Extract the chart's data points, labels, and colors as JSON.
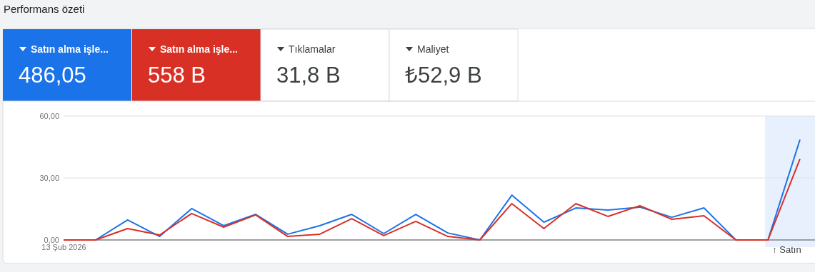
{
  "chart_data": [
    {
      "type": "other",
      "title": "Performans özeti",
      "categories": [
        "Satın alma işle...",
        "Satın alma işle...",
        "Tıklamalar",
        "Maliyet"
      ],
      "value_labels": [
        "486,05",
        "558 B",
        "31,8 B",
        "₺52,9 B"
      ],
      "colors": [
        "#1a73e8",
        "#d93025",
        "#ffffff",
        "#ffffff"
      ]
    },
    {
      "type": "line",
      "categories": [
        "13 Şub 2026",
        null,
        null,
        null,
        null,
        null,
        null,
        null,
        null,
        null,
        null,
        null,
        null,
        null,
        null,
        null,
        null,
        null,
        null,
        null,
        null,
        null,
        null,
        null
      ],
      "series": [
        {
          "color": "#1a73e8",
          "values": [
            0,
            0,
            9.7,
            1.7,
            15.2,
            6.9,
            12.4,
            2.8,
            6.9,
            12.4,
            3.1,
            12.4,
            3.4,
            0,
            21.7,
            8.6,
            15.5,
            14.5,
            15.9,
            11.0,
            15.5,
            0,
            0,
            48.6
          ]
        },
        {
          "color": "#d93025",
          "values": [
            0,
            0,
            5.5,
            2.4,
            12.8,
            6.2,
            12.1,
            1.7,
            2.8,
            10.3,
            2.1,
            9.0,
            1.7,
            0,
            17.6,
            5.5,
            17.6,
            11.4,
            16.6,
            10.0,
            11.7,
            0,
            0,
            39.3
          ]
        }
      ],
      "ylim": [
        0,
        60
      ],
      "yticks": [
        {
          "value": 0,
          "label": "0,00"
        },
        {
          "value": 30,
          "label": "30,00"
        },
        {
          "value": 60,
          "label": "60,00"
        }
      ],
      "grid": "y",
      "annotations": [
        "↑ Satın"
      ]
    }
  ]
}
